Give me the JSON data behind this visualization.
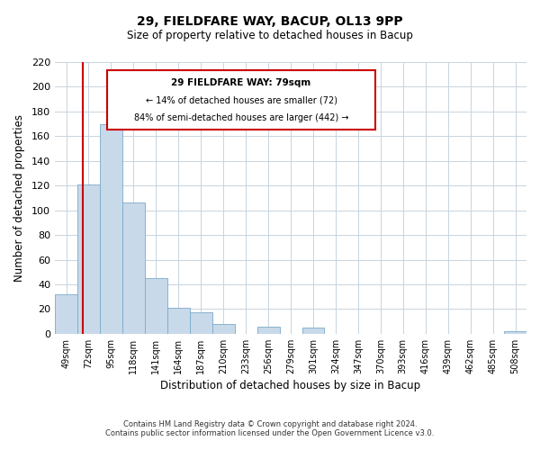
{
  "title": "29, FIELDFARE WAY, BACUP, OL13 9PP",
  "subtitle": "Size of property relative to detached houses in Bacup",
  "xlabel": "Distribution of detached houses by size in Bacup",
  "ylabel": "Number of detached properties",
  "categories": [
    "49sqm",
    "72sqm",
    "95sqm",
    "118sqm",
    "141sqm",
    "164sqm",
    "187sqm",
    "210sqm",
    "233sqm",
    "256sqm",
    "279sqm",
    "301sqm",
    "324sqm",
    "347sqm",
    "370sqm",
    "393sqm",
    "416sqm",
    "439sqm",
    "462sqm",
    "485sqm",
    "508sqm"
  ],
  "values": [
    32,
    121,
    170,
    106,
    45,
    21,
    17,
    8,
    0,
    6,
    0,
    5,
    0,
    0,
    0,
    0,
    0,
    0,
    0,
    0,
    2
  ],
  "bar_color": "#c8d9ea",
  "bar_edge_color": "#7aaac8",
  "vline_color": "#cc0000",
  "vline_xindex": 1,
  "annotation_title": "29 FIELDFARE WAY: 79sqm",
  "annotation_line1": "← 14% of detached houses are smaller (72)",
  "annotation_line2": "84% of semi-detached houses are larger (442) →",
  "annotation_box_color": "#ffffff",
  "annotation_box_edge": "#cc0000",
  "ylim": [
    0,
    220
  ],
  "yticks": [
    0,
    20,
    40,
    60,
    80,
    100,
    120,
    140,
    160,
    180,
    200,
    220
  ],
  "footnote1": "Contains HM Land Registry data © Crown copyright and database right 2024.",
  "footnote2": "Contains public sector information licensed under the Open Government Licence v3.0.",
  "background_color": "#ffffff",
  "grid_color": "#c8d4df"
}
